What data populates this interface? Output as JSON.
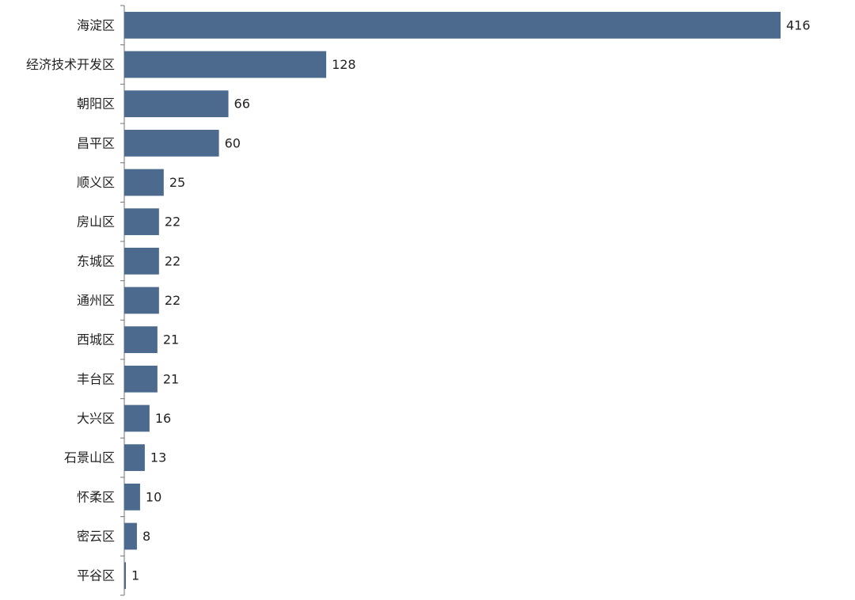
{
  "chart_data": {
    "type": "bar",
    "orientation": "horizontal",
    "categories": [
      "海淀区",
      "经济技术开发区",
      "朝阳区",
      "昌平区",
      "顺义区",
      "房山区",
      "东城区",
      "通州区",
      "西城区",
      "丰台区",
      "大兴区",
      "石景山区",
      "怀柔区",
      "密云区",
      "平谷区"
    ],
    "values": [
      416,
      128,
      66,
      60,
      25,
      22,
      22,
      22,
      21,
      21,
      16,
      13,
      10,
      8,
      1
    ],
    "color": "#4b6a8e"
  }
}
